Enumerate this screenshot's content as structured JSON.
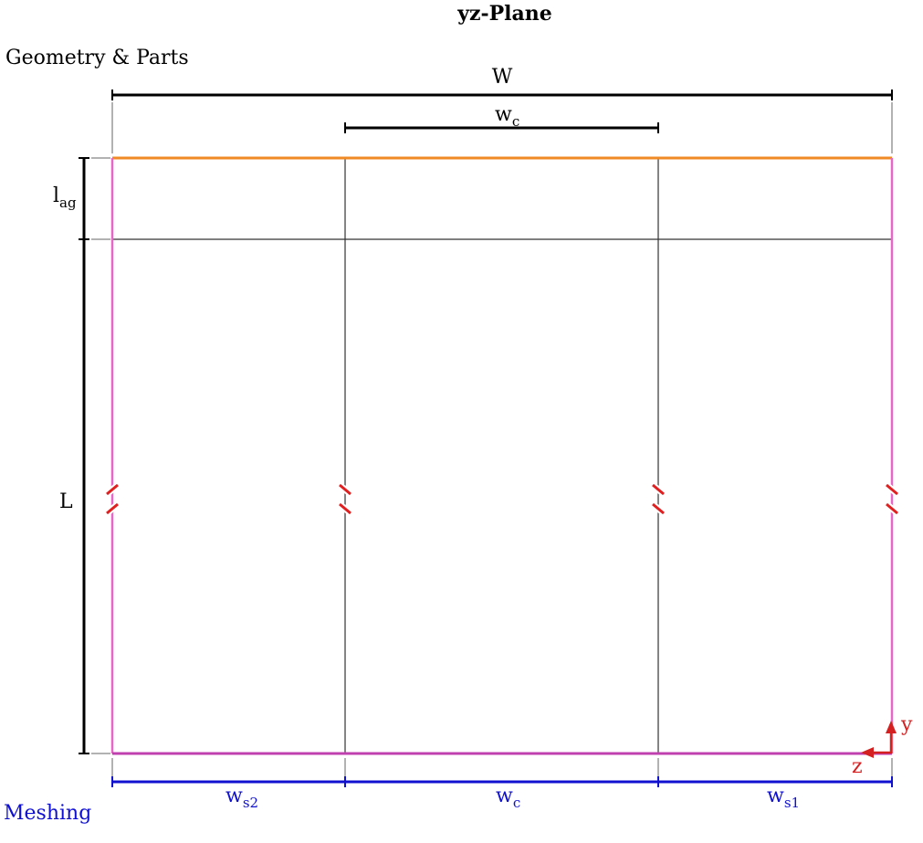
{
  "title": "yz-Plane",
  "sections": {
    "geometry_label": "Geometry & Parts",
    "meshing_label": "Meshing"
  },
  "dimensions": {
    "total_width": "W",
    "center_width_base": "w",
    "center_width_sub": "c",
    "air_gap_base": "l",
    "air_gap_sub": "ag",
    "length": "L"
  },
  "meshing": {
    "side2_base": "w",
    "side2_sub": "s2",
    "center_base": "w",
    "center_sub": "c",
    "side1_base": "w",
    "side1_sub": "s1"
  },
  "axes": {
    "vertical": "y",
    "horizontal": "z"
  },
  "colors": {
    "top_boundary": "#f08a24",
    "side_boundary": "#e866c8",
    "bottom_boundary": "#c040b0",
    "inner_lines": "#333333",
    "dimension": "#000000",
    "mesh": "#1010d0",
    "axes": "#d42020",
    "break_marks": "#e02020"
  }
}
